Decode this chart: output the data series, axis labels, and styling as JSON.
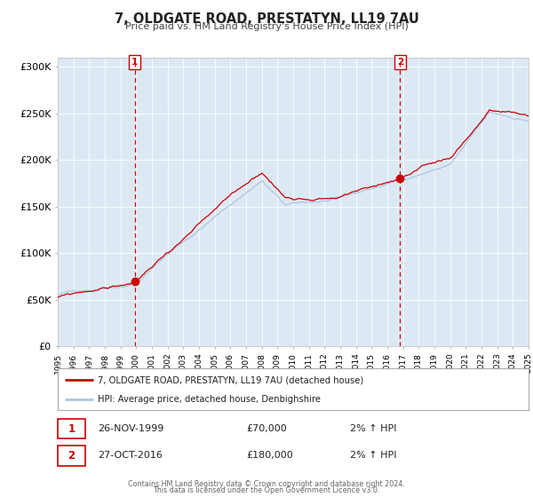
{
  "title": "7, OLDGATE ROAD, PRESTATYN, LL19 7AU",
  "subtitle": "Price paid vs. HM Land Registry's House Price Index (HPI)",
  "bg_color": "#dce9f5",
  "outer_bg_color": "#ffffff",
  "hpi_color": "#adc6e0",
  "property_color": "#cc0000",
  "ylim": [
    0,
    310000
  ],
  "yticks": [
    0,
    50000,
    100000,
    150000,
    200000,
    250000,
    300000
  ],
  "ytick_labels": [
    "£0",
    "£50K",
    "£100K",
    "£150K",
    "£200K",
    "£250K",
    "£300K"
  ],
  "sale1_year": 1999.9,
  "sale1_price": 70000,
  "sale2_year": 2016.82,
  "sale2_price": 180000,
  "sale1_date": "26-NOV-1999",
  "sale1_price_str": "£70,000",
  "sale2_date": "27-OCT-2016",
  "sale2_price_str": "£180,000",
  "sale_pct": "2% ↑ HPI",
  "legend_property": "7, OLDGATE ROAD, PRESTATYN, LL19 7AU (detached house)",
  "legend_hpi": "HPI: Average price, detached house, Denbighshire",
  "footer1": "Contains HM Land Registry data © Crown copyright and database right 2024.",
  "footer2": "This data is licensed under the Open Government Licence v3.0.",
  "start_year": 1995,
  "end_year": 2025
}
